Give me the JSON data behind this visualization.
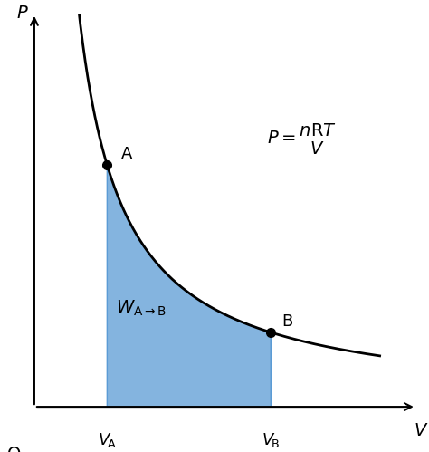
{
  "background_color": "#ffffff",
  "curve_color": "#000000",
  "fill_color": "#5b9bd5",
  "fill_alpha": 0.75,
  "point_color": "#000000",
  "axis_color": "#000000",
  "VA": 2.0,
  "VB": 6.5,
  "nRT": 8.0,
  "V_start": 1.2,
  "V_end": 9.5,
  "xlim": [
    0,
    10.5
  ],
  "ylim": [
    0,
    6.5
  ],
  "xlabel": "V",
  "ylabel": "P",
  "origin_label": "O",
  "A_label": "A",
  "B_label": "B",
  "figsize": [
    4.74,
    4.99
  ],
  "dpi": 100,
  "axis_lw": 1.5,
  "curve_lw": 2.0,
  "marker_size": 7
}
